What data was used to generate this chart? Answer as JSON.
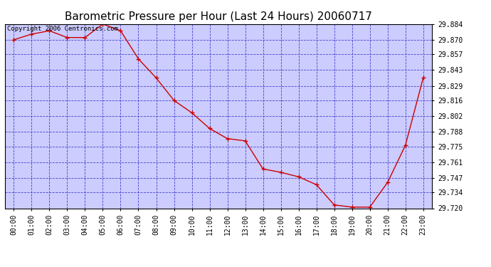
{
  "title": "Barometric Pressure per Hour (Last 24 Hours) 20060717",
  "copyright": "Copyright 2006 Centronics.com",
  "x_labels": [
    "00:00",
    "01:00",
    "02:00",
    "03:00",
    "04:00",
    "05:00",
    "06:00",
    "07:00",
    "08:00",
    "09:00",
    "10:00",
    "11:00",
    "12:00",
    "13:00",
    "14:00",
    "15:00",
    "16:00",
    "17:00",
    "18:00",
    "19:00",
    "20:00",
    "21:00",
    "22:00",
    "23:00"
  ],
  "y_values": [
    29.87,
    29.875,
    29.878,
    29.872,
    29.872,
    29.884,
    29.878,
    29.853,
    29.836,
    29.816,
    29.805,
    29.791,
    29.782,
    29.78,
    29.755,
    29.752,
    29.748,
    29.741,
    29.723,
    29.721,
    29.721,
    29.743,
    29.776,
    29.836
  ],
  "y_min": 29.72,
  "y_max": 29.884,
  "y_ticks": [
    29.72,
    29.734,
    29.747,
    29.761,
    29.775,
    29.788,
    29.802,
    29.816,
    29.829,
    29.843,
    29.857,
    29.87,
    29.884
  ],
  "line_color": "#cc0000",
  "marker_color": "#cc0000",
  "bg_color": "#ffffff",
  "plot_bg_color": "#ccccff",
  "grid_color": "#4444cc",
  "border_color": "#000000",
  "title_color": "#000000",
  "title_fontsize": 11,
  "copyright_fontsize": 6.5,
  "tick_fontsize": 7,
  "copyright_text_color": "#000000"
}
